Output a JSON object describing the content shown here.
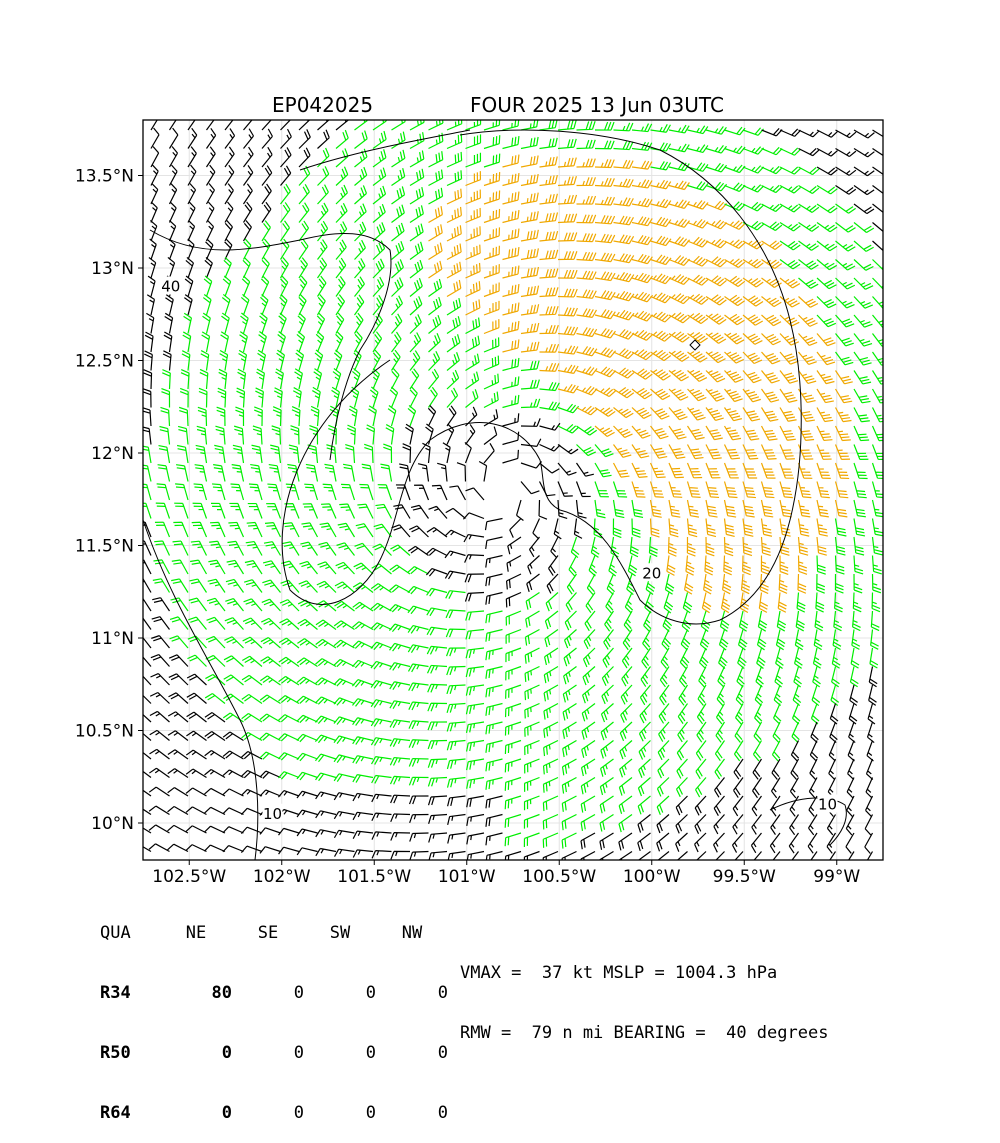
{
  "title_left": "EP042025",
  "title_right": "FOUR 2025 13 Jun 03UTC",
  "map": {
    "lon_range": [
      -102.75,
      -98.75
    ],
    "lat_range": [
      9.8,
      13.8
    ],
    "lon_ticks": [
      {
        "value": -102.5,
        "label": "102.5°W"
      },
      {
        "value": -102.0,
        "label": "102°W"
      },
      {
        "value": -101.5,
        "label": "101.5°W"
      },
      {
        "value": -101.0,
        "label": "101°W"
      },
      {
        "value": -100.5,
        "label": "100.5°W"
      },
      {
        "value": -100.0,
        "label": "100°W"
      },
      {
        "value": -99.5,
        "label": "99.5°W"
      },
      {
        "value": -99.0,
        "label": "99°W"
      }
    ],
    "lat_ticks": [
      {
        "value": 13.5,
        "label": "13.5°N"
      },
      {
        "value": 13.0,
        "label": "13°N"
      },
      {
        "value": 12.5,
        "label": "12.5°N"
      },
      {
        "value": 12.0,
        "label": "12°N"
      },
      {
        "value": 11.5,
        "label": "11.5°N"
      },
      {
        "value": 11.0,
        "label": "11°N"
      },
      {
        "value": 10.5,
        "label": "10.5°N"
      },
      {
        "value": 10.0,
        "label": "10°N"
      }
    ],
    "contour_labels": [
      {
        "text": "40",
        "lon": -102.6,
        "lat": 12.9
      },
      {
        "text": "20",
        "lon": -100.0,
        "lat": 11.35
      },
      {
        "text": "10",
        "lon": -102.05,
        "lat": 10.05
      },
      {
        "text": "10",
        "lon": -99.05,
        "lat": 10.1
      }
    ],
    "storm_center": {
      "lon": -100.8,
      "lat": 11.8
    },
    "colors": {
      "low": "#000000",
      "gale": "#00ee00",
      "storm": "#f0a800"
    }
  },
  "table": {
    "header": [
      "QUA",
      "NE",
      "SE",
      "SW",
      "NW"
    ],
    "rows": [
      {
        "label": "R34",
        "values": [
          "80",
          "0",
          "0",
          "0"
        ]
      },
      {
        "label": "R50",
        "values": [
          "0",
          "0",
          "0",
          "0"
        ]
      },
      {
        "label": "R64",
        "values": [
          "0",
          "0",
          "0",
          "0"
        ]
      }
    ]
  },
  "summary": {
    "line1": "VMAX =  37 kt MSLP = 1004.3 hPa",
    "line2": "RMW =  79 n mi BEARING =  40 degrees"
  }
}
